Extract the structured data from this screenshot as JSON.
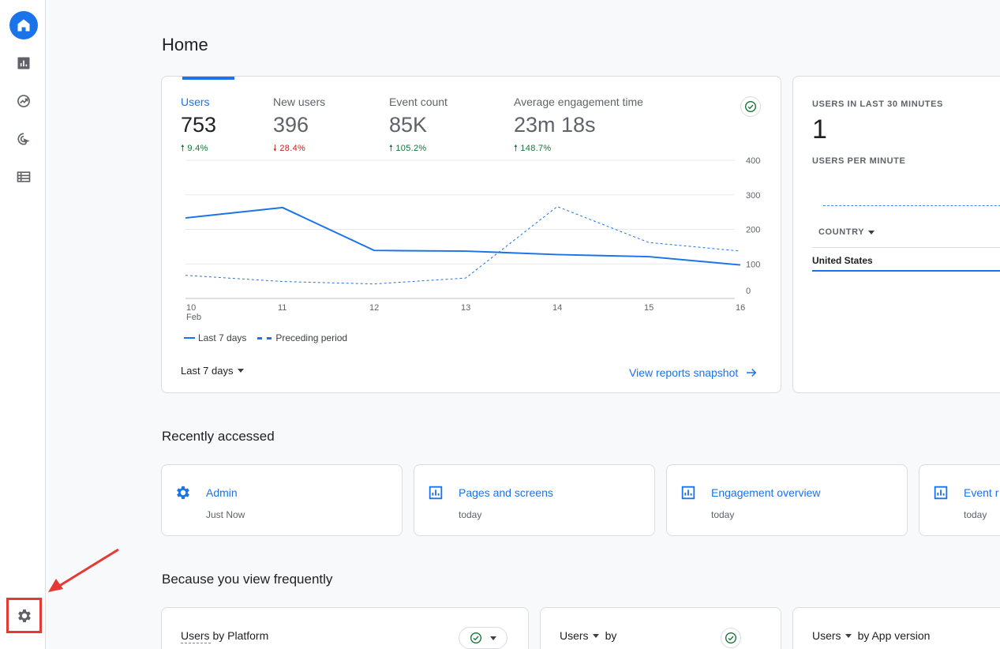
{
  "page": {
    "title": "Home"
  },
  "nav": {
    "items": [
      {
        "name": "nav-home",
        "icon": "home-icon",
        "active": true
      },
      {
        "name": "nav-reports",
        "icon": "bar-chart-icon",
        "active": false
      },
      {
        "name": "nav-explore",
        "icon": "explore-trend-icon",
        "active": false
      },
      {
        "name": "nav-advertising",
        "icon": "cursor-target-icon",
        "active": false
      },
      {
        "name": "nav-configure",
        "icon": "list-icon",
        "active": false
      }
    ],
    "settings_icon": "gear-icon"
  },
  "overview": {
    "metrics": [
      {
        "label": "Users",
        "value": "753",
        "change": "9.4%",
        "direction": "up"
      },
      {
        "label": "New users",
        "value": "396",
        "change": "28.4%",
        "direction": "down"
      },
      {
        "label": "Event count",
        "value": "85K",
        "change": "105.2%",
        "direction": "up"
      },
      {
        "label": "Average engagement time",
        "value": "23m 18s",
        "change": "148.7%",
        "direction": "up"
      }
    ],
    "legend": {
      "current": "Last 7 days",
      "previous": "Preceding period"
    },
    "date_range": "Last 7 days",
    "view_link": "View reports snapshot"
  },
  "chart_data": {
    "type": "line",
    "x": [
      "10",
      "11",
      "12",
      "13",
      "14",
      "15",
      "16"
    ],
    "x_sublabel": "Feb",
    "y_ticks": [
      0,
      100,
      200,
      300,
      400
    ],
    "ylim": [
      0,
      400
    ],
    "series": [
      {
        "name": "Last 7 days",
        "values": [
          233,
          263,
          139,
          137,
          127,
          121,
          97
        ],
        "style": "solid"
      },
      {
        "name": "Preceding period",
        "values": [
          67,
          49,
          42,
          59,
          266,
          162,
          137
        ],
        "style": "dashed"
      }
    ],
    "grid": true,
    "colors": {
      "line": "#1a73e8"
    }
  },
  "realtime": {
    "title": "USERS IN LAST 30 MINUTES",
    "value": "1",
    "subtitle": "USERS PER MINUTE",
    "country_header": "COUNTRY",
    "rows": [
      "United States"
    ]
  },
  "recent": {
    "title": "Recently accessed",
    "items": [
      {
        "name": "Admin",
        "time": "Just Now",
        "icon": "gear-icon"
      },
      {
        "name": "Pages and screens",
        "time": "today",
        "icon": "bar-chart-icon"
      },
      {
        "name": "Engagement overview",
        "time": "today",
        "icon": "bar-chart-icon"
      },
      {
        "name": "Event r",
        "time": "today",
        "icon": "bar-chart-icon"
      }
    ]
  },
  "frequent": {
    "title": "Because you view frequently",
    "cards": [
      {
        "title": "Users by Platform"
      },
      {
        "title_a": "Users",
        "title_b": "by"
      },
      {
        "title_a": "Users",
        "title_b": "by App version"
      }
    ]
  },
  "colors": {
    "accent": "#1a73e8",
    "up": "#137333",
    "down": "#c5221f",
    "highlight": "#e53935"
  }
}
